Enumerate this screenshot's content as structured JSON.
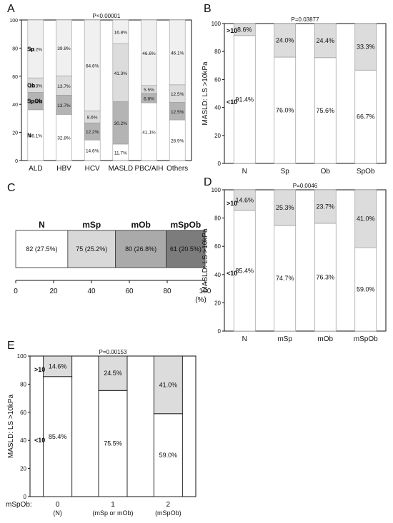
{
  "chart_data": [
    {
      "panel": "A",
      "type": "bar",
      "stacked": true,
      "pvalue": "P<0.00001",
      "categories": [
        "ALD",
        "HBV",
        "HCV",
        "MASLD",
        "PBC/AIH",
        "Others"
      ],
      "series": [
        {
          "name": "N",
          "values": [
            36.1,
            32.8,
            14.6,
            11.7,
            41.1,
            28.9
          ],
          "labels": [
            "36.1%",
            "32.8%",
            "14.6%",
            "11.7%",
            "41.1%",
            "28.9%"
          ],
          "color": "#ffffff"
        },
        {
          "name": "SpOb",
          "values": [
            12.4,
            13.7,
            12.2,
            30.2,
            6.8,
            12.5
          ],
          "labels": [
            "12.4%",
            "13.7%",
            "12.2%",
            "30.2%",
            "6.8%",
            "12.5%"
          ],
          "color": "#b4b4b4"
        },
        {
          "name": "Ob",
          "values": [
            10.3,
            13.7,
            8.6,
            41.3,
            5.5,
            12.5
          ],
          "labels": [
            "10.3%",
            "13.7%",
            "8.6%",
            "41.3%",
            "5.5%",
            "12.5%"
          ],
          "color": "#dcdcdc"
        },
        {
          "name": "Sp",
          "values": [
            41.2,
            39.8,
            64.6,
            16.8,
            46.6,
            46.1
          ],
          "labels": [
            "41.2%",
            "39.8%",
            "64.6%",
            "16.8%",
            "46.6%",
            "46.1%"
          ],
          "color": "#f0f0f0"
        }
      ],
      "yticks": [
        "0",
        "20",
        "40",
        "60",
        "80",
        "100"
      ],
      "ylim": [
        0,
        100
      ]
    },
    {
      "panel": "B",
      "type": "bar",
      "stacked": true,
      "pvalue": "P=0.03877",
      "ylabel": "MASLD: LS >10kPa",
      "categories": [
        "N",
        "Sp",
        "Ob",
        "SpOb"
      ],
      "series": [
        {
          "name": "<10",
          "values": [
            91.4,
            76.0,
            75.6,
            66.7
          ],
          "labels": [
            "91.4%",
            "76.0%",
            "75.6%",
            "66.7%"
          ],
          "color": "#ffffff"
        },
        {
          "name": ">10",
          "values": [
            8.6,
            24.0,
            24.4,
            33.3
          ],
          "labels": [
            "8.6%",
            "24.0%",
            "24.4%",
            "33.3%"
          ],
          "color": "#dcdcdc"
        }
      ],
      "yticks": [
        "0",
        "20",
        "40",
        "60",
        "80",
        "100"
      ],
      "ylim": [
        0,
        100
      ]
    },
    {
      "panel": "C",
      "type": "bar",
      "orientation": "horizontal",
      "stacked": true,
      "categories": [
        "N",
        "mSp",
        "mOb",
        "mSpOb"
      ],
      "values": [
        27.5,
        25.2,
        26.8,
        20.5
      ],
      "labels": [
        "82 (27.5%)",
        "75 (25.2%)",
        "80 (26.8%)",
        "61 (20.5%)"
      ],
      "colors": [
        "#ffffff",
        "#d8d8d8",
        "#aaaaaa",
        "#7c7c7c"
      ],
      "xticks": [
        "0",
        "20",
        "40",
        "60",
        "80",
        "100"
      ],
      "xunit": "(%)",
      "xlim": [
        0,
        100
      ]
    },
    {
      "panel": "D",
      "type": "bar",
      "stacked": true,
      "pvalue": "P=0.0046",
      "ylabel": "MASLD: LS >10kPa",
      "categories": [
        "N",
        "mSp",
        "mOb",
        "mSpOb"
      ],
      "series": [
        {
          "name": "<10",
          "values": [
            85.4,
            74.7,
            76.3,
            59.0
          ],
          "labels": [
            "85.4%",
            "74.7%",
            "76.3%",
            "59.0%"
          ],
          "color": "#ffffff"
        },
        {
          "name": ">10",
          "values": [
            14.6,
            25.3,
            23.7,
            41.0
          ],
          "labels": [
            "14.6%",
            "25.3%",
            "23.7%",
            "41.0%"
          ],
          "color": "#dcdcdc"
        }
      ],
      "yticks": [
        "0",
        "20",
        "40",
        "60",
        "80",
        "100"
      ],
      "ylim": [
        0,
        100
      ]
    },
    {
      "panel": "E",
      "type": "bar",
      "stacked": true,
      "pvalue": "P=0.00153",
      "ylabel": "MASLD: LS >10kPa",
      "xlabel_prefix": "mSpOb:",
      "categories": [
        "0",
        "1",
        "2"
      ],
      "category_sublabels": [
        "(N)",
        "(mSp or mOb)",
        "(mSpOb)"
      ],
      "series": [
        {
          "name": "<10",
          "values": [
            85.4,
            75.5,
            59.0
          ],
          "labels": [
            "85.4%",
            "75.5%",
            "59.0%"
          ],
          "color": "#ffffff"
        },
        {
          "name": ">10",
          "values": [
            14.6,
            24.5,
            41.0
          ],
          "labels": [
            "14.6%",
            "24.5%",
            "41.0%"
          ],
          "color": "#dcdcdc"
        }
      ],
      "yticks": [
        "0",
        "20",
        "40",
        "60",
        "80",
        "100"
      ],
      "ylim": [
        0,
        100
      ]
    }
  ]
}
